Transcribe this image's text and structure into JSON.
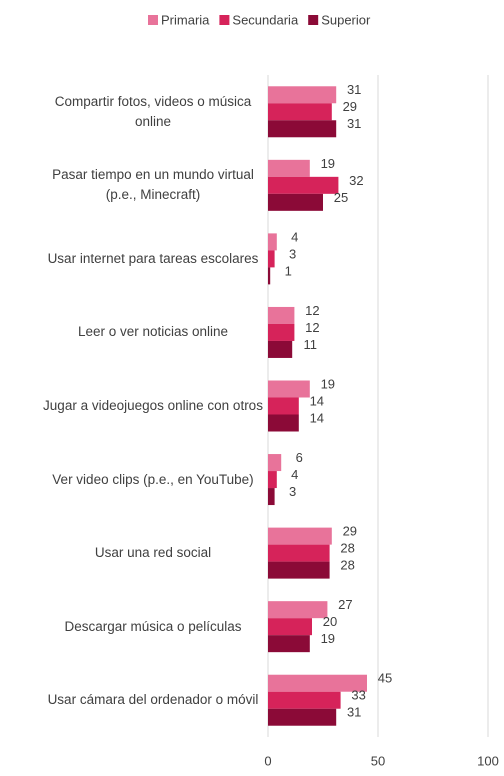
{
  "chart_data": {
    "type": "bar",
    "orientation": "horizontal",
    "categories": [
      "Compartir fotos, videos o música online",
      "Pasar tiempo en un mundo virtual (p.e., Minecraft)",
      "Usar internet para tareas escolares",
      "Leer o ver noticias online",
      "Jugar a videojuegos online con otros",
      "Ver video clips (p.e., en YouTube)",
      "Usar una red social",
      "Descargar música o películas",
      "Usar cámara del ordenador o móvil"
    ],
    "series": [
      {
        "name": "Primaria",
        "color": "#e8739a",
        "values": [
          31,
          19,
          4,
          12,
          19,
          6,
          29,
          27,
          45
        ]
      },
      {
        "name": "Secundaria",
        "color": "#d6235a",
        "values": [
          29,
          32,
          3,
          12,
          14,
          4,
          28,
          20,
          33
        ]
      },
      {
        "name": "Superior",
        "color": "#8b0a37",
        "values": [
          31,
          25,
          1,
          11,
          14,
          3,
          28,
          19,
          31
        ]
      }
    ],
    "xlim": [
      0,
      100
    ],
    "xticks": [
      0,
      50,
      100
    ],
    "grid": true,
    "legend": "top"
  }
}
